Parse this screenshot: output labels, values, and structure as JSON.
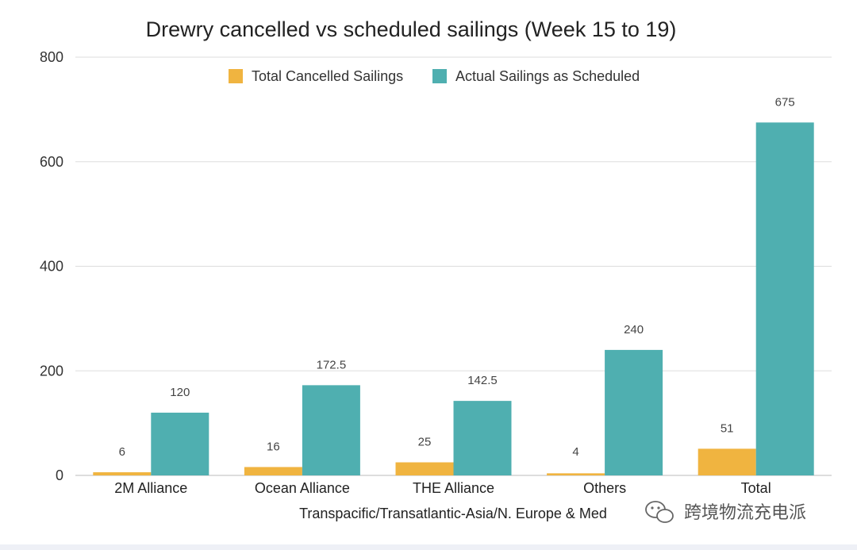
{
  "chart_data": {
    "type": "bar",
    "title": "Drewry cancelled vs scheduled sailings (Week 15 to 19)",
    "xlabel": "Transpacific/Transatlantic-Asia/N. Europe & Med",
    "ylabel": "",
    "ylim": [
      0,
      800
    ],
    "yticks": [
      0,
      200,
      400,
      600,
      800
    ],
    "grid": true,
    "legend_position": "top",
    "categories": [
      "2M Alliance",
      "Ocean Alliance",
      "THE Alliance",
      "Others",
      "Total"
    ],
    "series": [
      {
        "name": "Total Cancelled Sailings",
        "color": "#f0b440",
        "values": [
          6,
          16,
          25,
          4,
          51
        ]
      },
      {
        "name": "Actual Sailings as Scheduled",
        "color": "#4fafb0",
        "values": [
          120,
          172.5,
          142.5,
          240,
          675
        ]
      }
    ]
  },
  "watermark": {
    "text": "跨境物流充电派",
    "icon": "wechat-icon"
  }
}
